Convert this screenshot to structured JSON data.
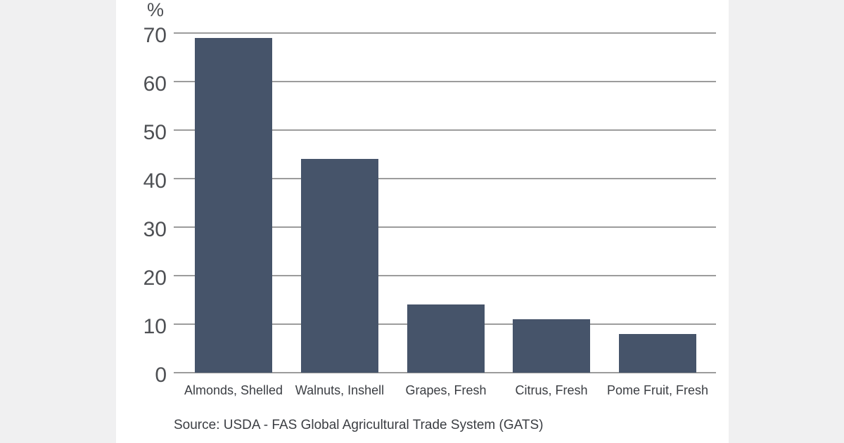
{
  "page": {
    "background_color": "#f0f0f1",
    "card_color": "#ffffff"
  },
  "chart_data": {
    "type": "bar",
    "title": "",
    "unit_label": "%",
    "categories": [
      "Almonds, Shelled",
      "Walnuts, Inshell",
      "Grapes, Fresh",
      "Citrus, Fresh",
      "Pome Fruit, Fresh"
    ],
    "values": [
      69,
      44,
      14,
      11,
      8
    ],
    "xlabel": "",
    "ylabel": "%",
    "ylim": [
      0,
      70
    ],
    "yticks": [
      70,
      60,
      50,
      40,
      30,
      20,
      10,
      0
    ],
    "grid": true,
    "legend": "none",
    "bar_color": "#46546a",
    "gridline_color": "#9c9c9c",
    "tick_label_color": "#4e5054",
    "category_label_color": "#3b3e43"
  },
  "footer": {
    "source": "Source: USDA - FAS Global Agricultural Trade System (GATS)"
  }
}
